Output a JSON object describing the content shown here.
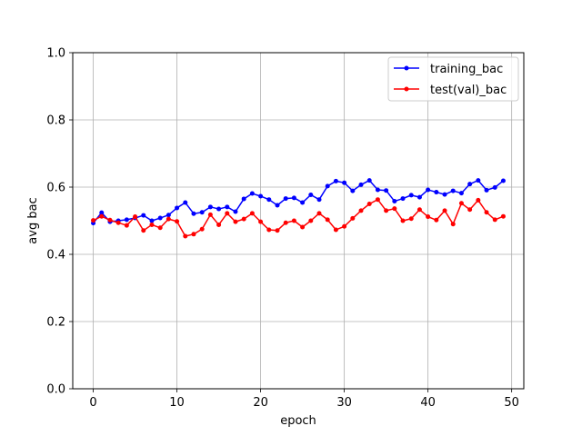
{
  "chart_data": {
    "type": "line",
    "title": "",
    "xlabel": "epoch",
    "ylabel": "avg bac",
    "xlim": [
      -2.45,
      51.45
    ],
    "ylim": [
      0.0,
      1.0
    ],
    "xticks": [
      0,
      10,
      20,
      30,
      40,
      50
    ],
    "yticks": [
      0.0,
      0.2,
      0.4,
      0.6,
      0.8,
      1.0
    ],
    "ytick_labels": [
      "0.0",
      "0.2",
      "0.4",
      "0.6",
      "0.8",
      "1.0"
    ],
    "grid": true,
    "legend_position": "top-right",
    "x": [
      0,
      1,
      2,
      3,
      4,
      5,
      6,
      7,
      8,
      9,
      10,
      11,
      12,
      13,
      14,
      15,
      16,
      17,
      18,
      19,
      20,
      21,
      22,
      23,
      24,
      25,
      26,
      27,
      28,
      29,
      30,
      31,
      32,
      33,
      34,
      35,
      36,
      37,
      38,
      39,
      40,
      41,
      42,
      43,
      44,
      45,
      46,
      47,
      48,
      49
    ],
    "series": [
      {
        "name": "training_bac",
        "color": "#0000ff",
        "values": [
          0.493,
          0.524,
          0.497,
          0.5,
          0.503,
          0.508,
          0.516,
          0.5,
          0.508,
          0.517,
          0.538,
          0.554,
          0.521,
          0.525,
          0.541,
          0.535,
          0.541,
          0.527,
          0.565,
          0.581,
          0.573,
          0.563,
          0.546,
          0.566,
          0.568,
          0.554,
          0.577,
          0.563,
          0.603,
          0.618,
          0.613,
          0.589,
          0.607,
          0.62,
          0.592,
          0.59,
          0.558,
          0.566,
          0.576,
          0.57,
          0.592,
          0.585,
          0.578,
          0.589,
          0.582,
          0.609,
          0.62,
          0.591,
          0.599,
          0.619
        ]
      },
      {
        "name": "test(val)_bac",
        "color": "#ff0000",
        "values": [
          0.501,
          0.513,
          0.502,
          0.494,
          0.486,
          0.512,
          0.471,
          0.488,
          0.479,
          0.505,
          0.498,
          0.454,
          0.46,
          0.475,
          0.518,
          0.488,
          0.522,
          0.497,
          0.505,
          0.522,
          0.497,
          0.473,
          0.471,
          0.494,
          0.5,
          0.481,
          0.5,
          0.522,
          0.503,
          0.473,
          0.483,
          0.507,
          0.53,
          0.55,
          0.563,
          0.53,
          0.536,
          0.5,
          0.506,
          0.533,
          0.512,
          0.502,
          0.53,
          0.49,
          0.552,
          0.533,
          0.561,
          0.525,
          0.503,
          0.513
        ]
      }
    ]
  }
}
